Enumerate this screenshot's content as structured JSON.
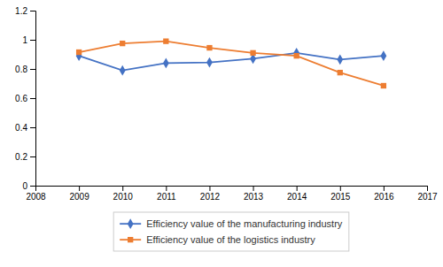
{
  "chart_data": {
    "type": "line",
    "x": [
      2009,
      2010,
      2011,
      2012,
      2013,
      2014,
      2015,
      2016
    ],
    "series": [
      {
        "name": "Efficiency value of the manufacturing industry",
        "color": "#4472C4",
        "marker": "diamond",
        "values": [
          0.89,
          0.79,
          0.84,
          0.845,
          0.87,
          0.91,
          0.865,
          0.89
        ]
      },
      {
        "name": "Efficiency value of the logistics industry",
        "color": "#ED7D31",
        "marker": "square",
        "values": [
          0.915,
          0.975,
          0.99,
          0.945,
          0.91,
          0.89,
          0.775,
          0.685
        ]
      }
    ],
    "xlim": [
      2008,
      2017
    ],
    "xticks": [
      2008,
      2009,
      2010,
      2011,
      2012,
      2013,
      2014,
      2015,
      2016,
      2017
    ],
    "ylim": [
      0,
      1.2
    ],
    "yticks": [
      0,
      0.2,
      0.4,
      0.6,
      0.8,
      1,
      1.2
    ],
    "grid": false,
    "legend": "bottom"
  }
}
